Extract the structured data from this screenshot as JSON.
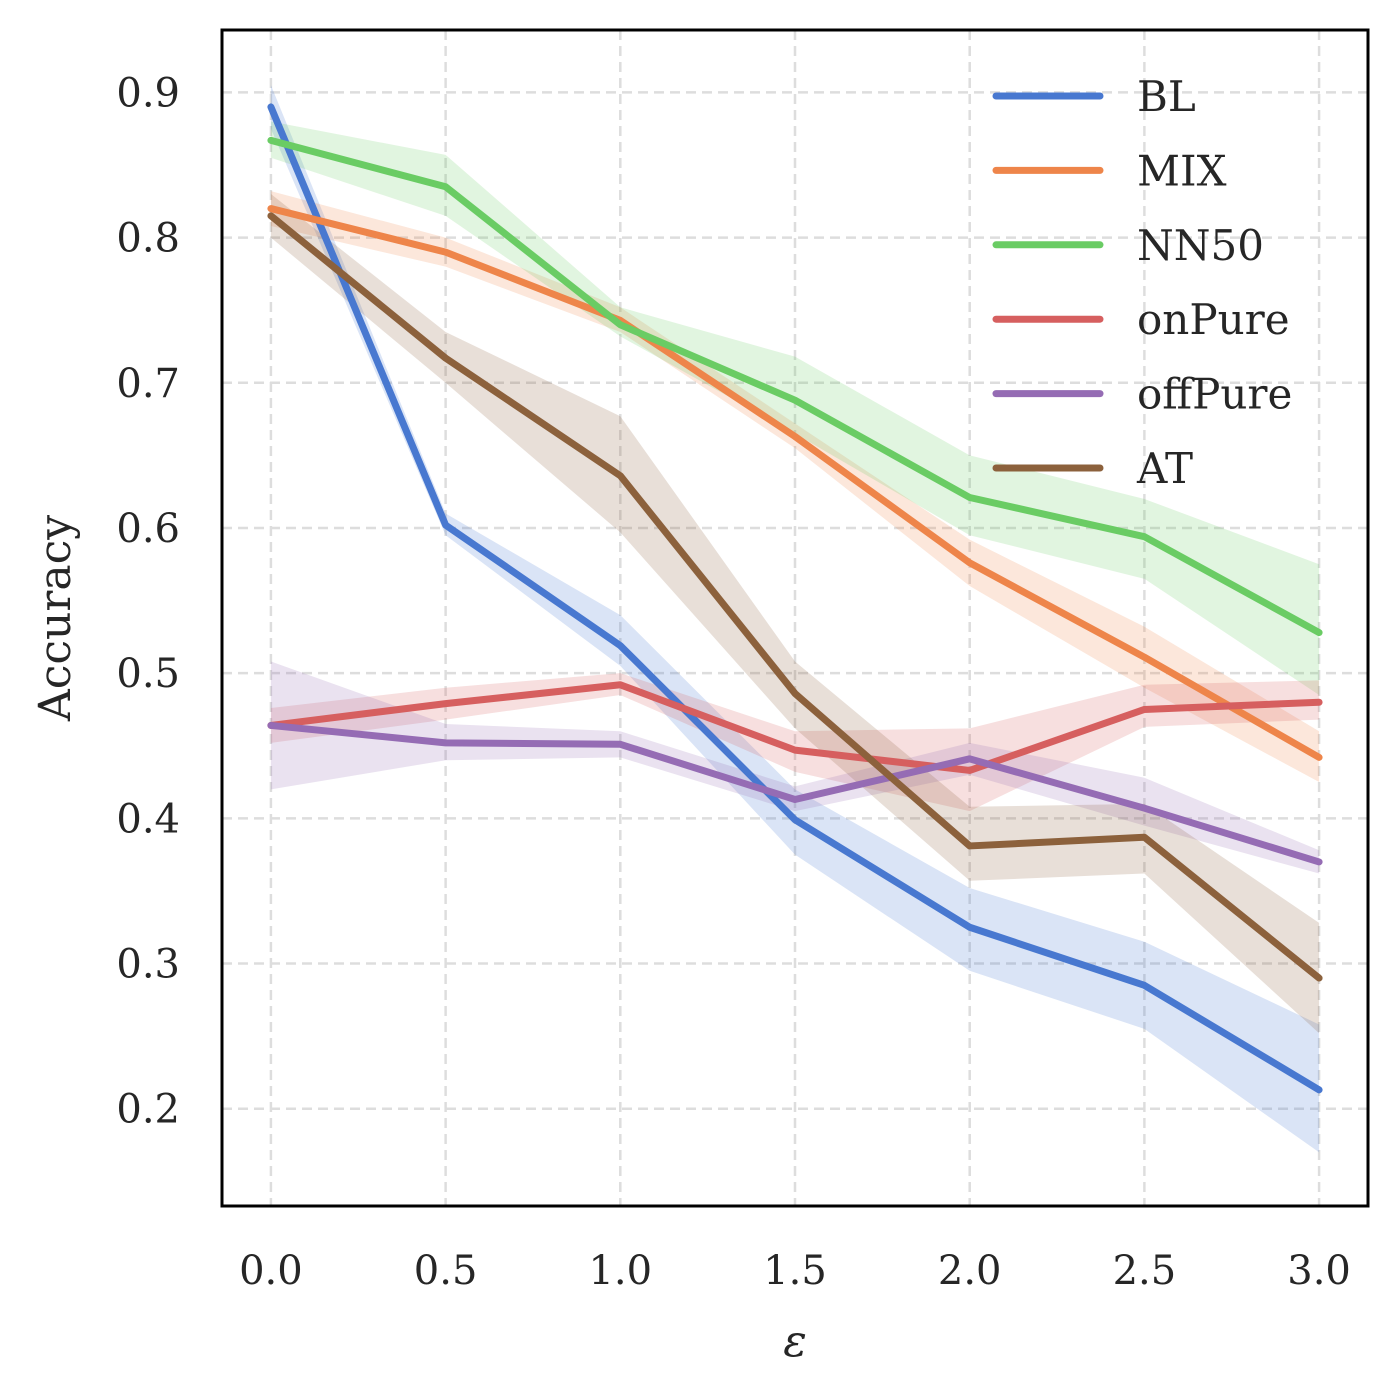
{
  "chart_data": {
    "type": "line",
    "title": "",
    "xlabel": "ε",
    "ylabel": "Accuracy",
    "x": [
      0.0,
      0.5,
      1.0,
      1.5,
      2.0,
      2.5,
      3.0
    ],
    "x_ticks": [
      "0.0",
      "0.5",
      "1.0",
      "1.5",
      "2.0",
      "2.5",
      "3.0"
    ],
    "y_ticks": [
      "0.2",
      "0.3",
      "0.4",
      "0.5",
      "0.6",
      "0.7",
      "0.8",
      "0.9"
    ],
    "xlim": [
      -0.14,
      3.14
    ],
    "ylim": [
      0.133,
      0.943
    ],
    "grid": true,
    "legend_position": "top-right",
    "series": [
      {
        "name": "BL",
        "color": "#4878d0",
        "values": [
          0.89,
          0.602,
          0.519,
          0.399,
          0.325,
          0.285,
          0.213
        ],
        "lower": [
          0.875,
          0.595,
          0.505,
          0.375,
          0.295,
          0.255,
          0.17
        ],
        "upper": [
          0.905,
          0.61,
          0.54,
          0.42,
          0.352,
          0.315,
          0.258
        ]
      },
      {
        "name": "MIX",
        "color": "#ee854a",
        "values": [
          0.82,
          0.79,
          0.743,
          0.663,
          0.576,
          0.511,
          0.442
        ],
        "lower": [
          0.808,
          0.78,
          0.735,
          0.655,
          0.56,
          0.49,
          0.425
        ],
        "upper": [
          0.832,
          0.8,
          0.752,
          0.672,
          0.592,
          0.532,
          0.46
        ]
      },
      {
        "name": "NN50",
        "color": "#6acc64",
        "values": [
          0.867,
          0.835,
          0.74,
          0.688,
          0.621,
          0.594,
          0.528
        ],
        "lower": [
          0.855,
          0.815,
          0.732,
          0.665,
          0.595,
          0.565,
          0.485
        ],
        "upper": [
          0.88,
          0.857,
          0.752,
          0.718,
          0.65,
          0.62,
          0.575
        ]
      },
      {
        "name": "onPure",
        "color": "#d65f5f",
        "values": [
          0.464,
          0.479,
          0.492,
          0.447,
          0.433,
          0.475,
          0.48
        ],
        "lower": [
          0.452,
          0.468,
          0.485,
          0.432,
          0.405,
          0.463,
          0.468
        ],
        "upper": [
          0.476,
          0.49,
          0.5,
          0.46,
          0.462,
          0.492,
          0.495
        ]
      },
      {
        "name": "offPure",
        "color": "#956cb4",
        "values": [
          0.464,
          0.452,
          0.451,
          0.413,
          0.441,
          0.407,
          0.37
        ],
        "lower": [
          0.42,
          0.44,
          0.442,
          0.405,
          0.43,
          0.395,
          0.362
        ],
        "upper": [
          0.508,
          0.465,
          0.46,
          0.422,
          0.452,
          0.428,
          0.378
        ]
      },
      {
        "name": "AT",
        "color": "#8c613c",
        "values": [
          0.815,
          0.717,
          0.636,
          0.486,
          0.381,
          0.387,
          0.29
        ],
        "lower": [
          0.8,
          0.7,
          0.597,
          0.462,
          0.357,
          0.362,
          0.252
        ],
        "upper": [
          0.83,
          0.735,
          0.677,
          0.508,
          0.408,
          0.41,
          0.328
        ]
      }
    ]
  }
}
